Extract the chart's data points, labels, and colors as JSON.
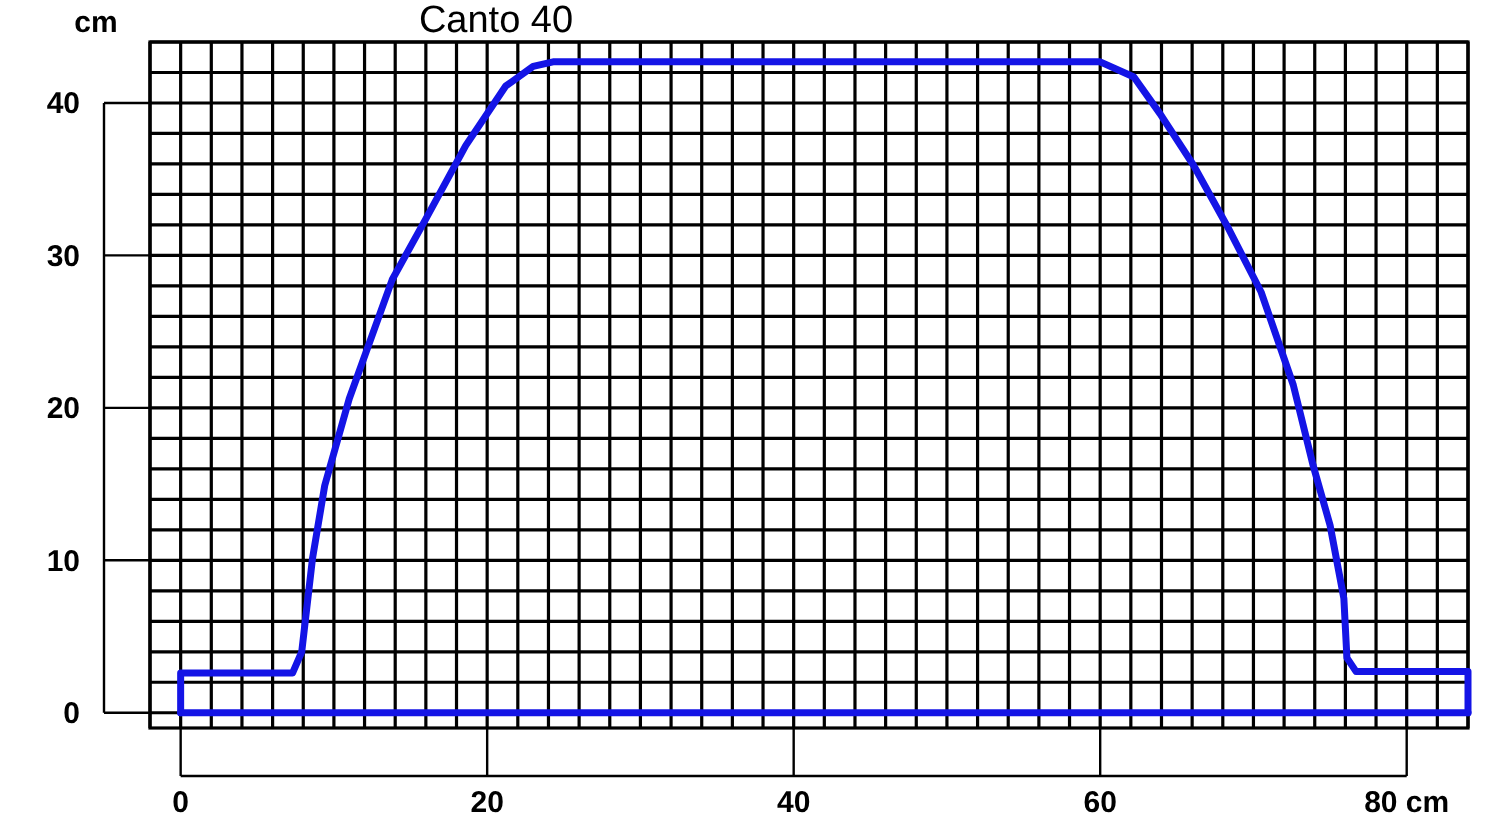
{
  "chart_data": {
    "type": "line",
    "title": "Canto 40",
    "ylabel": "cm",
    "xlim": [
      -2,
      84
    ],
    "ylim": [
      -1,
      44
    ],
    "xticks": [
      {
        "value": -2,
        "label": null
      },
      0,
      {
        "value": 2,
        "label": null
      },
      {
        "value": 4,
        "label": null
      },
      {
        "value": 6,
        "label": null
      },
      {
        "value": 8,
        "label": null
      },
      {
        "value": 10,
        "label": null
      },
      {
        "value": 12,
        "label": null
      },
      {
        "value": 14,
        "label": null
      },
      {
        "value": 16,
        "label": null
      },
      {
        "value": 18,
        "label": null
      },
      20,
      {
        "value": 22,
        "label": null
      },
      {
        "value": 24,
        "label": null
      },
      {
        "value": 26,
        "label": null
      },
      {
        "value": 28,
        "label": null
      },
      {
        "value": 30,
        "label": null
      },
      {
        "value": 32,
        "label": null
      },
      {
        "value": 34,
        "label": null
      },
      {
        "value": 36,
        "label": null
      },
      {
        "value": 38,
        "label": null
      },
      40,
      {
        "value": 42,
        "label": null
      },
      {
        "value": 44,
        "label": null
      },
      {
        "value": 46,
        "label": null
      },
      {
        "value": 48,
        "label": null
      },
      {
        "value": 50,
        "label": null
      },
      {
        "value": 52,
        "label": null
      },
      {
        "value": 54,
        "label": null
      },
      {
        "value": 56,
        "label": null
      },
      {
        "value": 58,
        "label": null
      },
      60,
      {
        "value": 62,
        "label": null
      },
      {
        "value": 64,
        "label": null
      },
      {
        "value": 66,
        "label": null
      },
      {
        "value": 68,
        "label": null
      },
      {
        "value": 70,
        "label": null
      },
      {
        "value": 72,
        "label": null
      },
      {
        "value": 74,
        "label": null
      },
      {
        "value": 76,
        "label": null
      },
      {
        "value": 78,
        "label": null
      },
      {
        "value": 80,
        "label": "80 cm"
      },
      {
        "value": 82,
        "label": null
      },
      {
        "value": 84,
        "label": null
      }
    ],
    "yticks": [
      0,
      {
        "value": 2,
        "label": null
      },
      {
        "value": 4,
        "label": null
      },
      {
        "value": 6,
        "label": null
      },
      {
        "value": 8,
        "label": null
      },
      10,
      {
        "value": 12,
        "label": null
      },
      {
        "value": 14,
        "label": null
      },
      {
        "value": 16,
        "label": null
      },
      {
        "value": 18,
        "label": null
      },
      20,
      {
        "value": 22,
        "label": null
      },
      {
        "value": 24,
        "label": null
      },
      {
        "value": 26,
        "label": null
      },
      {
        "value": 28,
        "label": null
      },
      30,
      {
        "value": 32,
        "label": null
      },
      {
        "value": 34,
        "label": null
      },
      {
        "value": 36,
        "label": null
      },
      {
        "value": 38,
        "label": null
      },
      40,
      {
        "value": 42,
        "label": null
      },
      {
        "value": 44,
        "label": null
      }
    ],
    "grid": true,
    "marker": "none",
    "line_style": "solid",
    "series": [
      {
        "color": "#1414e6",
        "x": [
          0,
          0,
          7.3,
          7.9,
          8.6,
          9.4,
          11.0,
          13.8,
          16.0,
          18.6,
          21.2,
          23.0,
          24.3,
          60.0,
          62.2,
          63.9,
          66.1,
          68.3,
          70.5,
          72.6,
          73.9,
          75.0,
          75.9,
          76.1,
          76.7,
          84,
          84
        ],
        "values": [
          0,
          2.6,
          2.6,
          4.0,
          10.1,
          14.9,
          20.6,
          28.4,
          32.4,
          37.2,
          41.1,
          42.4,
          42.7,
          42.7,
          41.7,
          39.3,
          35.9,
          31.9,
          27.6,
          21.5,
          16.2,
          12.3,
          7.5,
          3.6,
          2.7,
          2.7,
          0
        ]
      },
      {
        "color": "#1414e6",
        "x": [
          0,
          84
        ],
        "values": [
          0,
          0
        ]
      }
    ]
  }
}
